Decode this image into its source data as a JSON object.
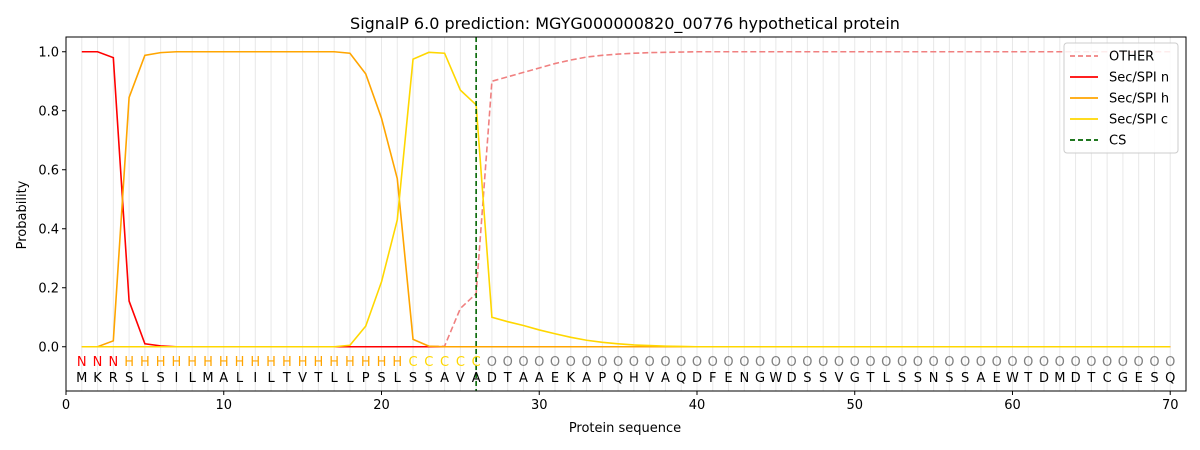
{
  "chart_data": {
    "type": "line",
    "title": "SignalP 6.0 prediction: MGYG000000820_00776 hypothetical protein",
    "xlabel": "Protein sequence",
    "ylabel": "Probability",
    "xlim": [
      0,
      71
    ],
    "ylim": [
      -0.15,
      1.05
    ],
    "x_ticks": [
      0,
      10,
      20,
      30,
      40,
      50,
      60,
      70
    ],
    "y_ticks": [
      0.0,
      0.2,
      0.4,
      0.6,
      0.8,
      1.0
    ],
    "x_tick_labels": [
      "0",
      "10",
      "20",
      "30",
      "40",
      "50",
      "60",
      "70"
    ],
    "y_tick_labels": [
      "0.0",
      "0.2",
      "0.4",
      "0.6",
      "0.8",
      "1.0"
    ],
    "legend_position": "top-right",
    "grid": "vertical lines at each residue",
    "sequence": [
      "M",
      "K",
      "R",
      "S",
      "L",
      "S",
      "I",
      "L",
      "M",
      "A",
      "L",
      "I",
      "L",
      "T",
      "V",
      "T",
      "L",
      "L",
      "P",
      "S",
      "L",
      "S",
      "S",
      "A",
      "V",
      "A",
      "D",
      "T",
      "A",
      "A",
      "E",
      "K",
      "A",
      "P",
      "Q",
      "H",
      "V",
      "A",
      "Q",
      "D",
      "F",
      "E",
      "N",
      "G",
      "W",
      "D",
      "S",
      "S",
      "V",
      "G",
      "T",
      "L",
      "S",
      "S",
      "N",
      "S",
      "S",
      "A",
      "E",
      "W",
      "T",
      "D",
      "M",
      "D",
      "T",
      "C",
      "G",
      "E",
      "S",
      "Q"
    ],
    "labels": [
      "N",
      "N",
      "N",
      "H",
      "H",
      "H",
      "H",
      "H",
      "H",
      "H",
      "H",
      "H",
      "H",
      "H",
      "H",
      "H",
      "H",
      "H",
      "H",
      "H",
      "H",
      "C",
      "C",
      "C",
      "C",
      "C",
      "O",
      "O",
      "O",
      "O",
      "O",
      "O",
      "O",
      "O",
      "O",
      "O",
      "O",
      "O",
      "O",
      "O",
      "O",
      "O",
      "O",
      "O",
      "O",
      "O",
      "O",
      "O",
      "O",
      "O",
      "O",
      "O",
      "O",
      "O",
      "O",
      "O",
      "O",
      "O",
      "O",
      "O",
      "O",
      "O",
      "O",
      "O",
      "O",
      "O",
      "O",
      "O",
      "O",
      "O"
    ],
    "label_colors": {
      "N": "#ff0000",
      "H": "#ffa500",
      "C": "#ffd700",
      "O": "#808080"
    },
    "x": [
      1,
      2,
      3,
      4,
      5,
      6,
      7,
      8,
      9,
      10,
      11,
      12,
      13,
      14,
      15,
      16,
      17,
      18,
      19,
      20,
      21,
      22,
      23,
      24,
      25,
      26,
      27,
      28,
      29,
      30,
      31,
      32,
      33,
      34,
      35,
      36,
      37,
      38,
      39,
      40,
      41,
      42,
      43,
      44,
      45,
      46,
      47,
      48,
      49,
      50,
      51,
      52,
      53,
      54,
      55,
      56,
      57,
      58,
      59,
      60,
      61,
      62,
      63,
      64,
      65,
      66,
      67,
      68,
      69,
      70
    ],
    "series": [
      {
        "name": "OTHER",
        "color": "#f08080",
        "dash": true,
        "values": [
          0,
          0,
          0,
          0,
          0,
          0,
          0,
          0,
          0,
          0,
          0,
          0,
          0,
          0,
          0,
          0,
          0,
          0,
          0,
          0,
          0,
          0,
          0,
          0.002,
          0.13,
          0.18,
          0.9,
          0.915,
          0.93,
          0.945,
          0.96,
          0.972,
          0.982,
          0.988,
          0.992,
          0.995,
          0.997,
          0.998,
          0.999,
          1,
          1,
          1,
          1,
          1,
          1,
          1,
          1,
          1,
          1,
          1,
          1,
          1,
          1,
          1,
          1,
          1,
          1,
          1,
          1,
          1,
          1,
          1,
          1,
          1,
          1,
          1,
          1,
          1,
          1,
          1
        ]
      },
      {
        "name": "Sec/SPI n",
        "color": "#ff0000",
        "dash": false,
        "values": [
          1.0,
          1.0,
          0.98,
          0.155,
          0.01,
          0.003,
          0,
          0,
          0,
          0,
          0,
          0,
          0,
          0,
          0,
          0,
          0,
          0,
          0,
          0,
          0,
          0,
          0,
          0,
          0,
          0,
          0,
          0,
          0,
          0,
          0,
          0,
          0,
          0,
          0,
          0,
          0,
          0,
          0,
          0,
          0,
          0,
          0,
          0,
          0,
          0,
          0,
          0,
          0,
          0,
          0,
          0,
          0,
          0,
          0,
          0,
          0,
          0,
          0,
          0,
          0,
          0,
          0,
          0,
          0,
          0,
          0,
          0,
          0,
          0
        ]
      },
      {
        "name": "Sec/SPI h",
        "color": "#ffa500",
        "dash": false,
        "values": [
          0,
          0,
          0.02,
          0.845,
          0.988,
          0.997,
          1,
          1,
          1,
          1,
          1,
          1,
          1,
          1,
          1,
          1,
          1,
          0.995,
          0.925,
          0.775,
          0.57,
          0.025,
          0.002,
          0,
          0,
          0,
          0,
          0,
          0,
          0,
          0,
          0,
          0,
          0,
          0,
          0,
          0,
          0,
          0,
          0,
          0,
          0,
          0,
          0,
          0,
          0,
          0,
          0,
          0,
          0,
          0,
          0,
          0,
          0,
          0,
          0,
          0,
          0,
          0,
          0,
          0,
          0,
          0,
          0,
          0,
          0,
          0,
          0,
          0,
          0
        ]
      },
      {
        "name": "Sec/SPI c",
        "color": "#ffd700",
        "dash": false,
        "values": [
          0,
          0,
          0,
          0,
          0,
          0,
          0,
          0,
          0,
          0,
          0,
          0,
          0,
          0,
          0,
          0,
          0,
          0.005,
          0.07,
          0.22,
          0.43,
          0.975,
          0.998,
          0.995,
          0.87,
          0.82,
          0.1,
          0.085,
          0.072,
          0.057,
          0.044,
          0.032,
          0.022,
          0.015,
          0.01,
          0.006,
          0.004,
          0.002,
          0.001,
          0,
          0,
          0,
          0,
          0,
          0,
          0,
          0,
          0,
          0,
          0,
          0,
          0,
          0,
          0,
          0,
          0,
          0,
          0,
          0,
          0,
          0,
          0,
          0,
          0,
          0,
          0,
          0,
          0,
          0,
          0
        ]
      }
    ],
    "cs": {
      "name": "CS",
      "x": 26,
      "color": "#006400"
    }
  }
}
